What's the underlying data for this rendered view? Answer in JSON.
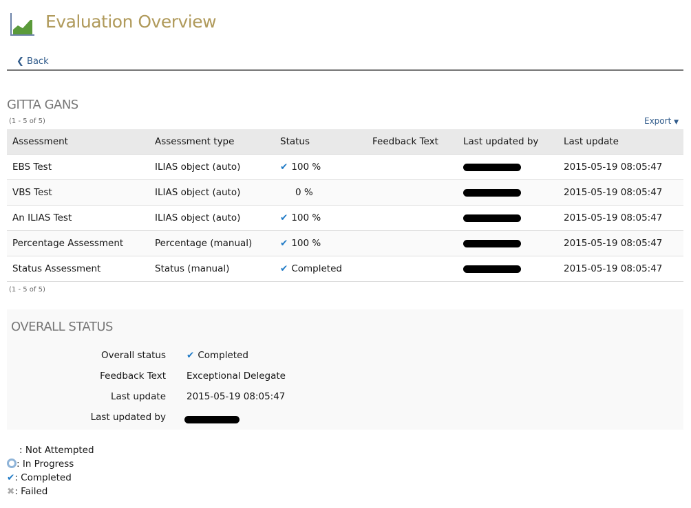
{
  "header": {
    "title": "Evaluation Overview",
    "icon": "chart-area-icon",
    "back_label": "Back"
  },
  "user": {
    "name": "GITTA GANS",
    "count_top": "(1 - 5 of 5)",
    "count_bottom": "(1 - 5 of 5)",
    "export_label": "Export"
  },
  "table": {
    "columns": [
      "Assessment",
      "Assessment type",
      "Status",
      "Feedback Text",
      "Last updated by",
      "Last update"
    ],
    "rows": [
      {
        "assessment": "EBS Test",
        "type": "ILIAS object (auto)",
        "status": "100 %",
        "status_icon": "check-icon",
        "feedback": "",
        "updated_by": "[redacted]",
        "last_update": "2015-05-19 08:05:47"
      },
      {
        "assessment": "VBS Test",
        "type": "ILIAS object (auto)",
        "status": "0 %",
        "status_icon": "none",
        "feedback": "",
        "updated_by": "[redacted]",
        "last_update": "2015-05-19 08:05:47"
      },
      {
        "assessment": "An ILIAS Test",
        "type": "ILIAS object (auto)",
        "status": "100 %",
        "status_icon": "check-icon",
        "feedback": "",
        "updated_by": "[redacted]",
        "last_update": "2015-05-19 08:05:47"
      },
      {
        "assessment": "Percentage Assessment",
        "type": "Percentage (manual)",
        "status": "100 %",
        "status_icon": "check-icon",
        "feedback": "",
        "updated_by": "[redacted]",
        "last_update": "2015-05-19 08:05:47"
      },
      {
        "assessment": "Status Assessment",
        "type": "Status (manual)",
        "status": "Completed",
        "status_icon": "check-icon",
        "feedback": "",
        "updated_by": "[redacted]",
        "last_update": "2015-05-19 08:05:47"
      }
    ]
  },
  "overall": {
    "title": "OVERALL STATUS",
    "labels": [
      "Overall status",
      "Feedback Text",
      "Last update",
      "Last updated by"
    ],
    "status": "Completed",
    "feedback": "Exceptional Delegate",
    "last_update": "2015-05-19 08:05:47"
  },
  "legend": [
    ": Not Attempted",
    ": In Progress",
    ": Completed",
    ": Failed"
  ],
  "colors": {
    "title": "#b09a5b",
    "link": "#2f5a8a",
    "check": "#1f7ac6"
  }
}
